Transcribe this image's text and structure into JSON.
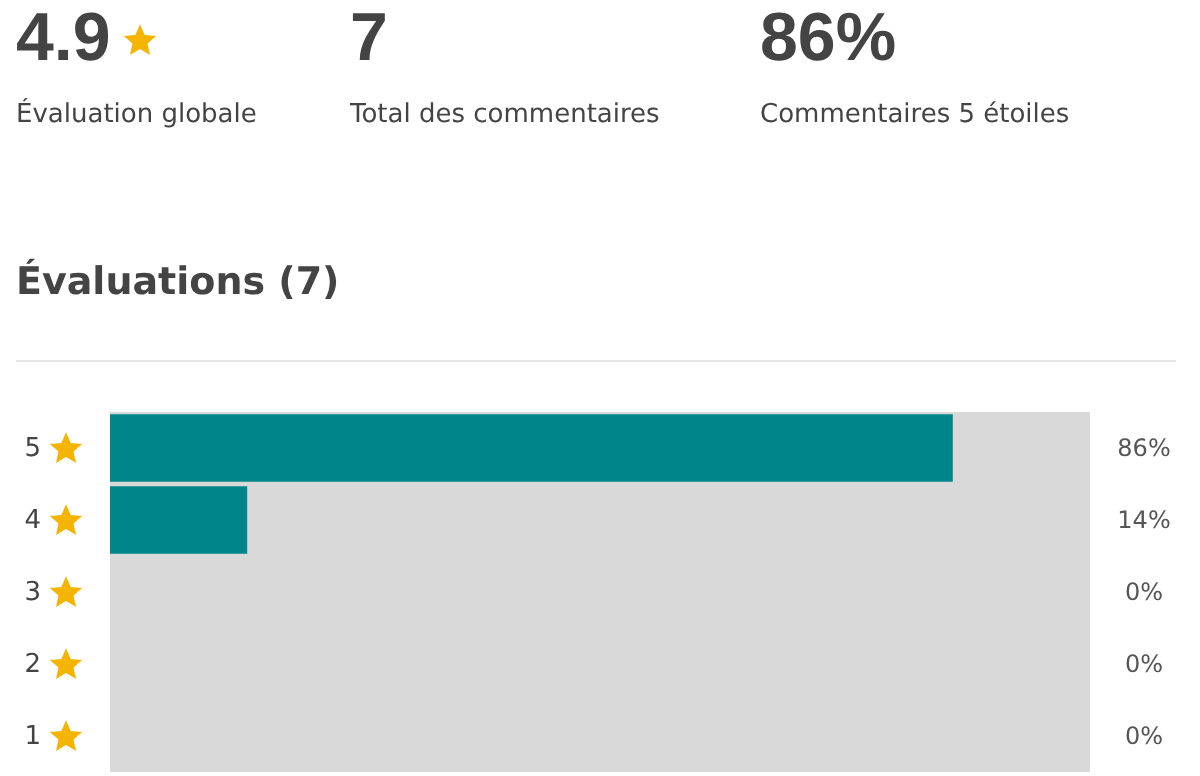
{
  "chart_data": {
    "type": "bar",
    "orientation": "horizontal",
    "title": "Évaluations (7)",
    "annotations": [
      "4.9",
      "Évaluation globale",
      "7",
      "Total des commentaires",
      "86%",
      "Commentaires 5 étoiles"
    ],
    "categories": [
      "5",
      "4",
      "3",
      "2",
      "1"
    ],
    "values": [
      86,
      14,
      0,
      0,
      0
    ],
    "value_labels": [
      "86%",
      "14%",
      "0%",
      "0%",
      "0%"
    ],
    "color": "#00868a",
    "xlim": [
      0,
      100
    ],
    "grid": false
  }
}
